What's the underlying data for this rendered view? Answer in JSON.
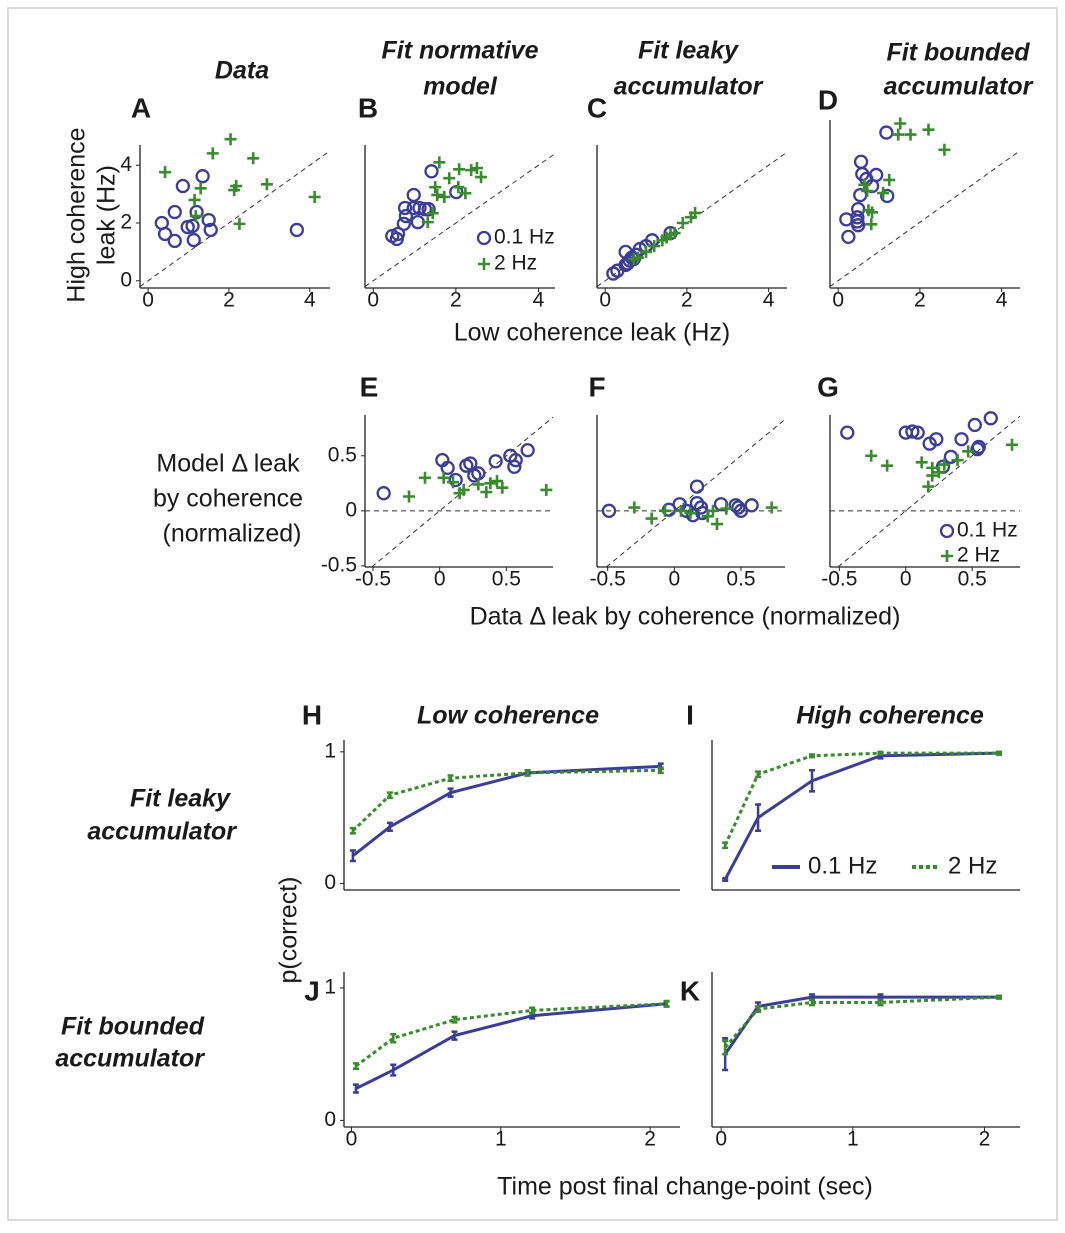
{
  "chart_data": [
    {
      "type": "scatter",
      "panel": "A",
      "title": [
        "Data"
      ],
      "y_label": [
        "High coherence",
        "leak (Hz)"
      ],
      "xlim": [
        -0.2,
        4.5
      ],
      "ylim": [
        -0.25,
        4.7
      ],
      "xticks": [
        0,
        2,
        4
      ],
      "yticks": [
        0,
        2,
        4
      ],
      "diagonal": true,
      "series": [
        {
          "color": "#3b3d96",
          "marker": "o",
          "x": [
            0.34,
            0.42,
            0.66,
            0.66,
            0.86,
            0.98,
            1.1,
            1.13,
            1.2,
            1.35,
            1.5,
            1.55,
            3.68
          ],
          "y": [
            2.0,
            1.62,
            1.38,
            2.38,
            3.28,
            1.86,
            1.9,
            1.41,
            2.38,
            3.62,
            2.1,
            1.76,
            1.76
          ]
        },
        {
          "color": "#3a8a2e",
          "marker": "+",
          "x": [
            0.42,
            1.15,
            1.18,
            1.3,
            1.6,
            2.04,
            2.18,
            2.13,
            2.26,
            2.6,
            2.94,
            4.12
          ],
          "y": [
            3.76,
            2.8,
            2.24,
            3.2,
            4.41,
            4.9,
            3.28,
            3.14,
            1.97,
            4.24,
            3.34,
            2.9
          ]
        }
      ]
    },
    {
      "type": "scatter",
      "panel": "B",
      "title": [
        "Fit normative",
        "model"
      ],
      "xlim": [
        -0.2,
        4.4
      ],
      "ylim": [
        -0.25,
        4.7
      ],
      "xticks": [
        0,
        2,
        4
      ],
      "diagonal": true,
      "legend": "lower right",
      "series": [
        {
          "name": "0.1 Hz",
          "color": "#3b3d96",
          "marker": "o",
          "x": [
            0.46,
            0.57,
            0.6,
            0.74,
            0.77,
            0.98,
            0.98,
            1.12,
            1.08,
            1.25,
            1.34,
            1.41,
            2.01,
            0.79
          ],
          "y": [
            1.55,
            1.45,
            1.62,
            1.97,
            2.52,
            2.97,
            2.52,
            2.52,
            2.03,
            2.48,
            2.48,
            3.79,
            3.07,
            2.24
          ]
        },
        {
          "name": "2 Hz",
          "color": "#3a8a2e",
          "marker": "+",
          "x": [
            1.32,
            1.44,
            1.5,
            1.6,
            1.55,
            1.72,
            1.84,
            2.06,
            2.08,
            2.37,
            2.51,
            2.61,
            2.23
          ],
          "y": [
            2.03,
            2.34,
            3.24,
            4.1,
            2.97,
            2.9,
            3.55,
            3.24,
            3.86,
            3.83,
            3.9,
            3.59,
            3.03
          ]
        }
      ]
    },
    {
      "type": "scatter",
      "panel": "C",
      "title": [
        "Fit leaky",
        "accumulator"
      ],
      "x_label": "Low coherence leak (Hz)",
      "xlim": [
        -0.2,
        4.45
      ],
      "ylim": [
        -0.25,
        4.7
      ],
      "xticks": [
        0,
        2,
        4
      ],
      "diagonal": true,
      "series": [
        {
          "color": "#3b3d96",
          "marker": "o",
          "x": [
            0.2,
            0.3,
            0.5,
            0.55,
            0.6,
            0.65,
            0.7,
            0.75,
            0.85,
            1.0,
            1.15,
            0.5,
            1.6
          ],
          "y": [
            0.25,
            0.35,
            0.55,
            0.6,
            0.7,
            0.8,
            0.75,
            0.9,
            1.1,
            1.2,
            1.4,
            1.0,
            1.65
          ]
        },
        {
          "color": "#3a8a2e",
          "marker": "+",
          "x": [
            0.7,
            0.8,
            1.0,
            1.2,
            1.4,
            1.5,
            1.6,
            1.7,
            1.9,
            2.1,
            2.2
          ],
          "y": [
            0.75,
            0.8,
            1.0,
            1.2,
            1.4,
            1.5,
            1.6,
            1.65,
            2.0,
            2.2,
            2.35
          ]
        }
      ]
    },
    {
      "type": "scatter",
      "panel": "D",
      "title": [
        "Fit bounded",
        "accumulator"
      ],
      "xlim": [
        -0.2,
        4.45
      ],
      "ylim": [
        -0.25,
        5.5
      ],
      "xticks": [
        0,
        2,
        4
      ],
      "diagonal": true,
      "series": [
        {
          "color": "#3b3d96",
          "marker": "o",
          "x": [
            0.25,
            0.2,
            0.47,
            0.47,
            0.49,
            0.54,
            0.59,
            0.56,
            0.69,
            0.83,
            0.93,
            1.2,
            1.18,
            0.49
          ],
          "y": [
            1.5,
            2.1,
            2.17,
            2.03,
            2.45,
            2.93,
            3.65,
            4.07,
            3.48,
            3.24,
            3.62,
            2.9,
            5.07,
            1.9
          ]
        },
        {
          "color": "#3a8a2e",
          "marker": "+",
          "x": [
            0.64,
            0.71,
            0.74,
            0.83,
            0.81,
            1.25,
            1.52,
            1.77,
            2.21,
            2.6,
            1.47,
            1.1
          ],
          "y": [
            3.28,
            3.07,
            2.41,
            2.34,
            1.93,
            3.45,
            5.38,
            5.0,
            5.17,
            4.48,
            5.0,
            3.0
          ]
        }
      ]
    },
    {
      "type": "scatter",
      "panel": "E",
      "y_label": [
        "Model Δ leak",
        "by coherence",
        "(normalized)"
      ],
      "xlim": [
        -0.56,
        0.85
      ],
      "ylim": [
        -0.51,
        0.87
      ],
      "xticks": [
        -0.5,
        0,
        0.5
      ],
      "yticks": [
        -0.5,
        0,
        0.5
      ],
      "diagonal": true,
      "zero_line": true,
      "series": [
        {
          "color": "#3b3d96",
          "marker": "o",
          "x": [
            -0.42,
            0.02,
            0.06,
            0.12,
            0.2,
            0.23,
            0.26,
            0.29,
            0.42,
            0.53,
            0.56,
            0.66,
            0.57
          ],
          "y": [
            0.16,
            0.46,
            0.39,
            0.28,
            0.41,
            0.43,
            0.32,
            0.34,
            0.45,
            0.5,
            0.4,
            0.55,
            0.46
          ]
        },
        {
          "color": "#3a8a2e",
          "marker": "+",
          "x": [
            -0.23,
            -0.11,
            0.03,
            0.1,
            0.15,
            0.18,
            0.29,
            0.35,
            0.38,
            0.47,
            0.43,
            0.8
          ],
          "y": [
            0.13,
            0.3,
            0.3,
            0.26,
            0.16,
            0.19,
            0.24,
            0.17,
            0.25,
            0.21,
            0.27,
            0.19
          ]
        }
      ]
    },
    {
      "type": "scatter",
      "panel": "F",
      "x_label": "Data Δ leak by coherence (normalized)",
      "xlim": [
        -0.58,
        0.83
      ],
      "ylim": [
        -0.51,
        0.87
      ],
      "xticks": [
        -0.5,
        0,
        0.5
      ],
      "diagonal": true,
      "zero_line": true,
      "series": [
        {
          "color": "#3b3d96",
          "marker": "o",
          "x": [
            -0.49,
            -0.04,
            0.04,
            0.09,
            0.17,
            0.17,
            0.21,
            0.35,
            0.46,
            0.48,
            0.5,
            0.58,
            0.14,
            0.2
          ],
          "y": [
            0,
            0.01,
            0.06,
            0,
            0.22,
            0.07,
            -0.02,
            0.06,
            0.05,
            0.03,
            0,
            0.05,
            -0.04,
            0.03
          ]
        },
        {
          "color": "#3a8a2e",
          "marker": "+",
          "x": [
            -0.3,
            -0.17,
            -0.07,
            0.05,
            0.12,
            0.29,
            0.32,
            0.39,
            0.73,
            0.25
          ],
          "y": [
            0.03,
            -0.07,
            0,
            0,
            -0.02,
            0,
            -0.12,
            0.02,
            0.03,
            -0.05
          ]
        }
      ]
    },
    {
      "type": "scatter",
      "panel": "G",
      "xlim": [
        -0.57,
        0.86
      ],
      "ylim": [
        -0.51,
        0.87
      ],
      "xticks": [
        -0.5,
        0,
        0.5
      ],
      "diagonal": true,
      "zero_line": true,
      "legend": "lower right",
      "series": [
        {
          "name": "0.1 Hz",
          "color": "#3b3d96",
          "marker": "o",
          "x": [
            -0.44,
            0,
            0.05,
            0.09,
            0.18,
            0.23,
            0.28,
            0.34,
            0.42,
            0.52,
            0.54,
            0.64,
            0.55
          ],
          "y": [
            0.71,
            0.71,
            0.72,
            0.71,
            0.61,
            0.65,
            0.4,
            0.49,
            0.65,
            0.78,
            0.56,
            0.84,
            0.58
          ]
        },
        {
          "name": "2 Hz",
          "color": "#3a8a2e",
          "marker": "+",
          "x": [
            -0.26,
            -0.14,
            0.12,
            0.2,
            0.29,
            0.2,
            0.17,
            0.25,
            0.39,
            0.47,
            0.8
          ],
          "y": [
            0.5,
            0.41,
            0.44,
            0.39,
            0.42,
            0.32,
            0.22,
            0.35,
            0.46,
            0.54,
            0.6
          ]
        }
      ]
    },
    {
      "type": "line",
      "panel": "H",
      "title": [
        "Low coherence"
      ],
      "row_label": [
        "Fit leaky",
        "accumulator"
      ],
      "y_label": "p(correct)",
      "x": [
        0.03,
        0.28,
        0.69,
        1.21,
        2.11
      ],
      "xlim": [
        -0.03,
        2.24
      ],
      "ylim": [
        -0.05,
        1.09
      ],
      "yticks": [
        0,
        1
      ],
      "series": [
        {
          "color": "#3b3d96",
          "dash": "solid",
          "values": [
            0.21,
            0.43,
            0.69,
            0.84,
            0.89
          ],
          "errors": [
            0.04,
            0.03,
            0.03,
            0.02,
            0.02
          ]
        },
        {
          "color": "#3a8a2e",
          "dash": "dotted",
          "values": [
            0.4,
            0.67,
            0.8,
            0.84,
            0.86
          ],
          "errors": [
            0.02,
            0.02,
            0.02,
            0.02,
            0.02
          ]
        }
      ]
    },
    {
      "type": "line",
      "panel": "I",
      "title": [
        "High coherence"
      ],
      "legend": "lower right",
      "x": [
        0.03,
        0.28,
        0.69,
        1.21,
        2.11
      ],
      "xlim": [
        -0.07,
        2.27
      ],
      "ylim": [
        -0.05,
        1.09
      ],
      "series": [
        {
          "name": "0.1 Hz",
          "color": "#3b3d96",
          "dash": "solid",
          "values": [
            0.03,
            0.5,
            0.78,
            0.97,
            0.99
          ],
          "errors": [
            0.01,
            0.1,
            0.08,
            0.02,
            0.01
          ]
        },
        {
          "name": "2 Hz",
          "color": "#3a8a2e",
          "dash": "dotted",
          "values": [
            0.29,
            0.83,
            0.97,
            0.99,
            0.99
          ],
          "errors": [
            0.02,
            0.02,
            0.01,
            0.01,
            0.01
          ]
        }
      ]
    },
    {
      "type": "line",
      "panel": "J",
      "row_label": [
        "Fit bounded",
        "accumulator"
      ],
      "x_label": "Time post final change-point (sec)",
      "x": [
        0.03,
        0.28,
        0.69,
        1.21,
        2.11
      ],
      "xlim": [
        -0.05,
        2.2
      ],
      "ylim": [
        -0.05,
        1.12
      ],
      "xticks": [
        0,
        1,
        2
      ],
      "yticks": [
        0,
        1
      ],
      "series": [
        {
          "color": "#3b3d96",
          "dash": "solid",
          "values": [
            0.24,
            0.38,
            0.64,
            0.79,
            0.88
          ],
          "errors": [
            0.03,
            0.04,
            0.03,
            0.02,
            0.02
          ]
        },
        {
          "color": "#3a8a2e",
          "dash": "dotted",
          "values": [
            0.41,
            0.62,
            0.76,
            0.83,
            0.88
          ],
          "errors": [
            0.02,
            0.03,
            0.02,
            0.02,
            0.02
          ]
        }
      ]
    },
    {
      "type": "line",
      "panel": "K",
      "x": [
        0.03,
        0.28,
        0.69,
        1.21,
        2.11
      ],
      "xlim": [
        -0.07,
        2.27
      ],
      "ylim": [
        -0.05,
        1.12
      ],
      "xticks": [
        0,
        1,
        2
      ],
      "series": [
        {
          "color": "#3b3d96",
          "dash": "solid",
          "values": [
            0.5,
            0.86,
            0.93,
            0.93,
            0.93
          ],
          "errors": [
            0.12,
            0.03,
            0.02,
            0.02,
            0.01
          ]
        },
        {
          "color": "#3a8a2e",
          "dash": "dotted",
          "values": [
            0.55,
            0.84,
            0.89,
            0.89,
            0.93
          ],
          "errors": [
            0.05,
            0.02,
            0.02,
            0.02,
            0.01
          ]
        }
      ]
    }
  ]
}
